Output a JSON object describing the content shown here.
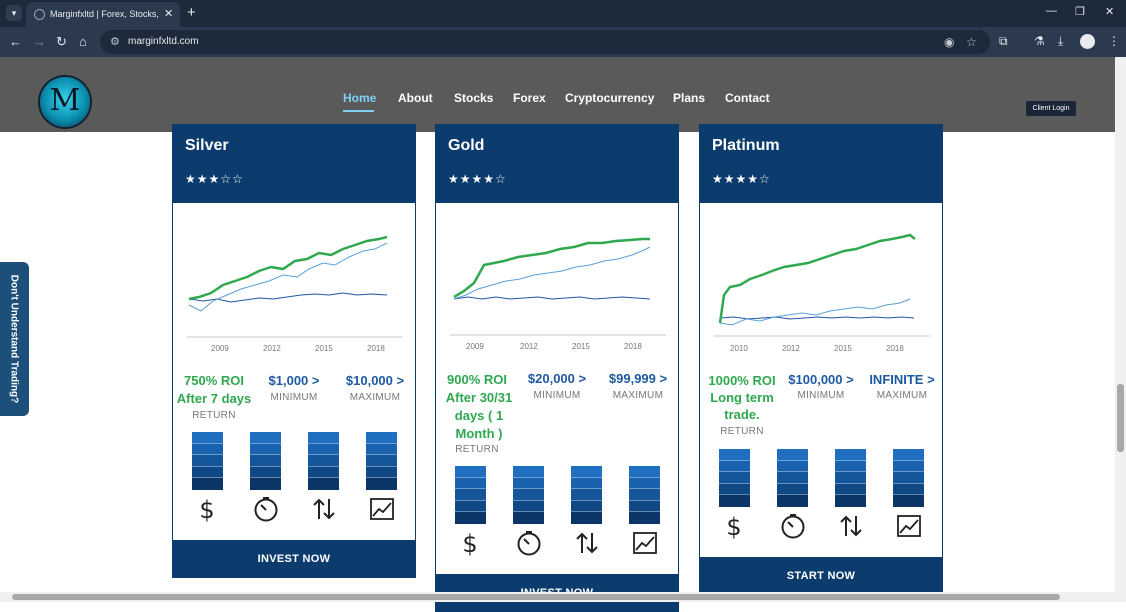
{
  "browser": {
    "tab_title": "Marginfxltd | Forex, Stocks, Crypto",
    "url": "marginfxltd.com"
  },
  "site": {
    "logo_letter": "M",
    "nav": [
      "Home",
      "About",
      "Stocks",
      "Forex",
      "Cryptocurrency",
      "Plans",
      "Contact"
    ],
    "active_nav": "Home",
    "client_login": "Client Login",
    "side_tab": "Don't Understand Trading?"
  },
  "plans": [
    {
      "name": "Silver",
      "stars": "★★★☆☆",
      "years": [
        "2009",
        "2012",
        "2015",
        "2018"
      ],
      "roi": "750% ROI",
      "roi_detail": "After 7 days",
      "return_label": "RETURN",
      "minimum": "$1,000 >",
      "minimum_label": "MINIMUM",
      "maximum": "$10,000 >",
      "maximum_label": "MAXIMUM",
      "cta": "INVEST NOW"
    },
    {
      "name": "Gold",
      "stars": "★★★★☆",
      "years": [
        "2009",
        "2012",
        "2015",
        "2018"
      ],
      "roi": "900% ROI",
      "roi_detail": "After 30/31 days ( 1 Month )",
      "return_label": "RETURN",
      "minimum": "$20,000 >",
      "minimum_label": "MINIMUM",
      "maximum": "$99,999 >",
      "maximum_label": "MAXIMUM",
      "cta": "INVEST NOW"
    },
    {
      "name": "Platinum",
      "stars": "★★★★☆",
      "years": [
        "2010",
        "2012",
        "2015",
        "2018"
      ],
      "roi": "1000% ROI",
      "roi_detail": "Long term trade.",
      "return_label": "RETURN",
      "minimum": "$100,000 >",
      "minimum_label": "MINIMUM",
      "maximum": "INFINITE >",
      "maximum_label": "MAXIMUM",
      "cta": "START NOW"
    }
  ],
  "feature_icons": [
    "dollar-icon",
    "timer-icon",
    "transfer-arrows-icon",
    "chart-line-icon"
  ],
  "colors": {
    "navy": "#0b3c6d",
    "green": "#2fa84f",
    "blue_text": "#1e5aa0",
    "nav_active": "#7fd0f4"
  }
}
